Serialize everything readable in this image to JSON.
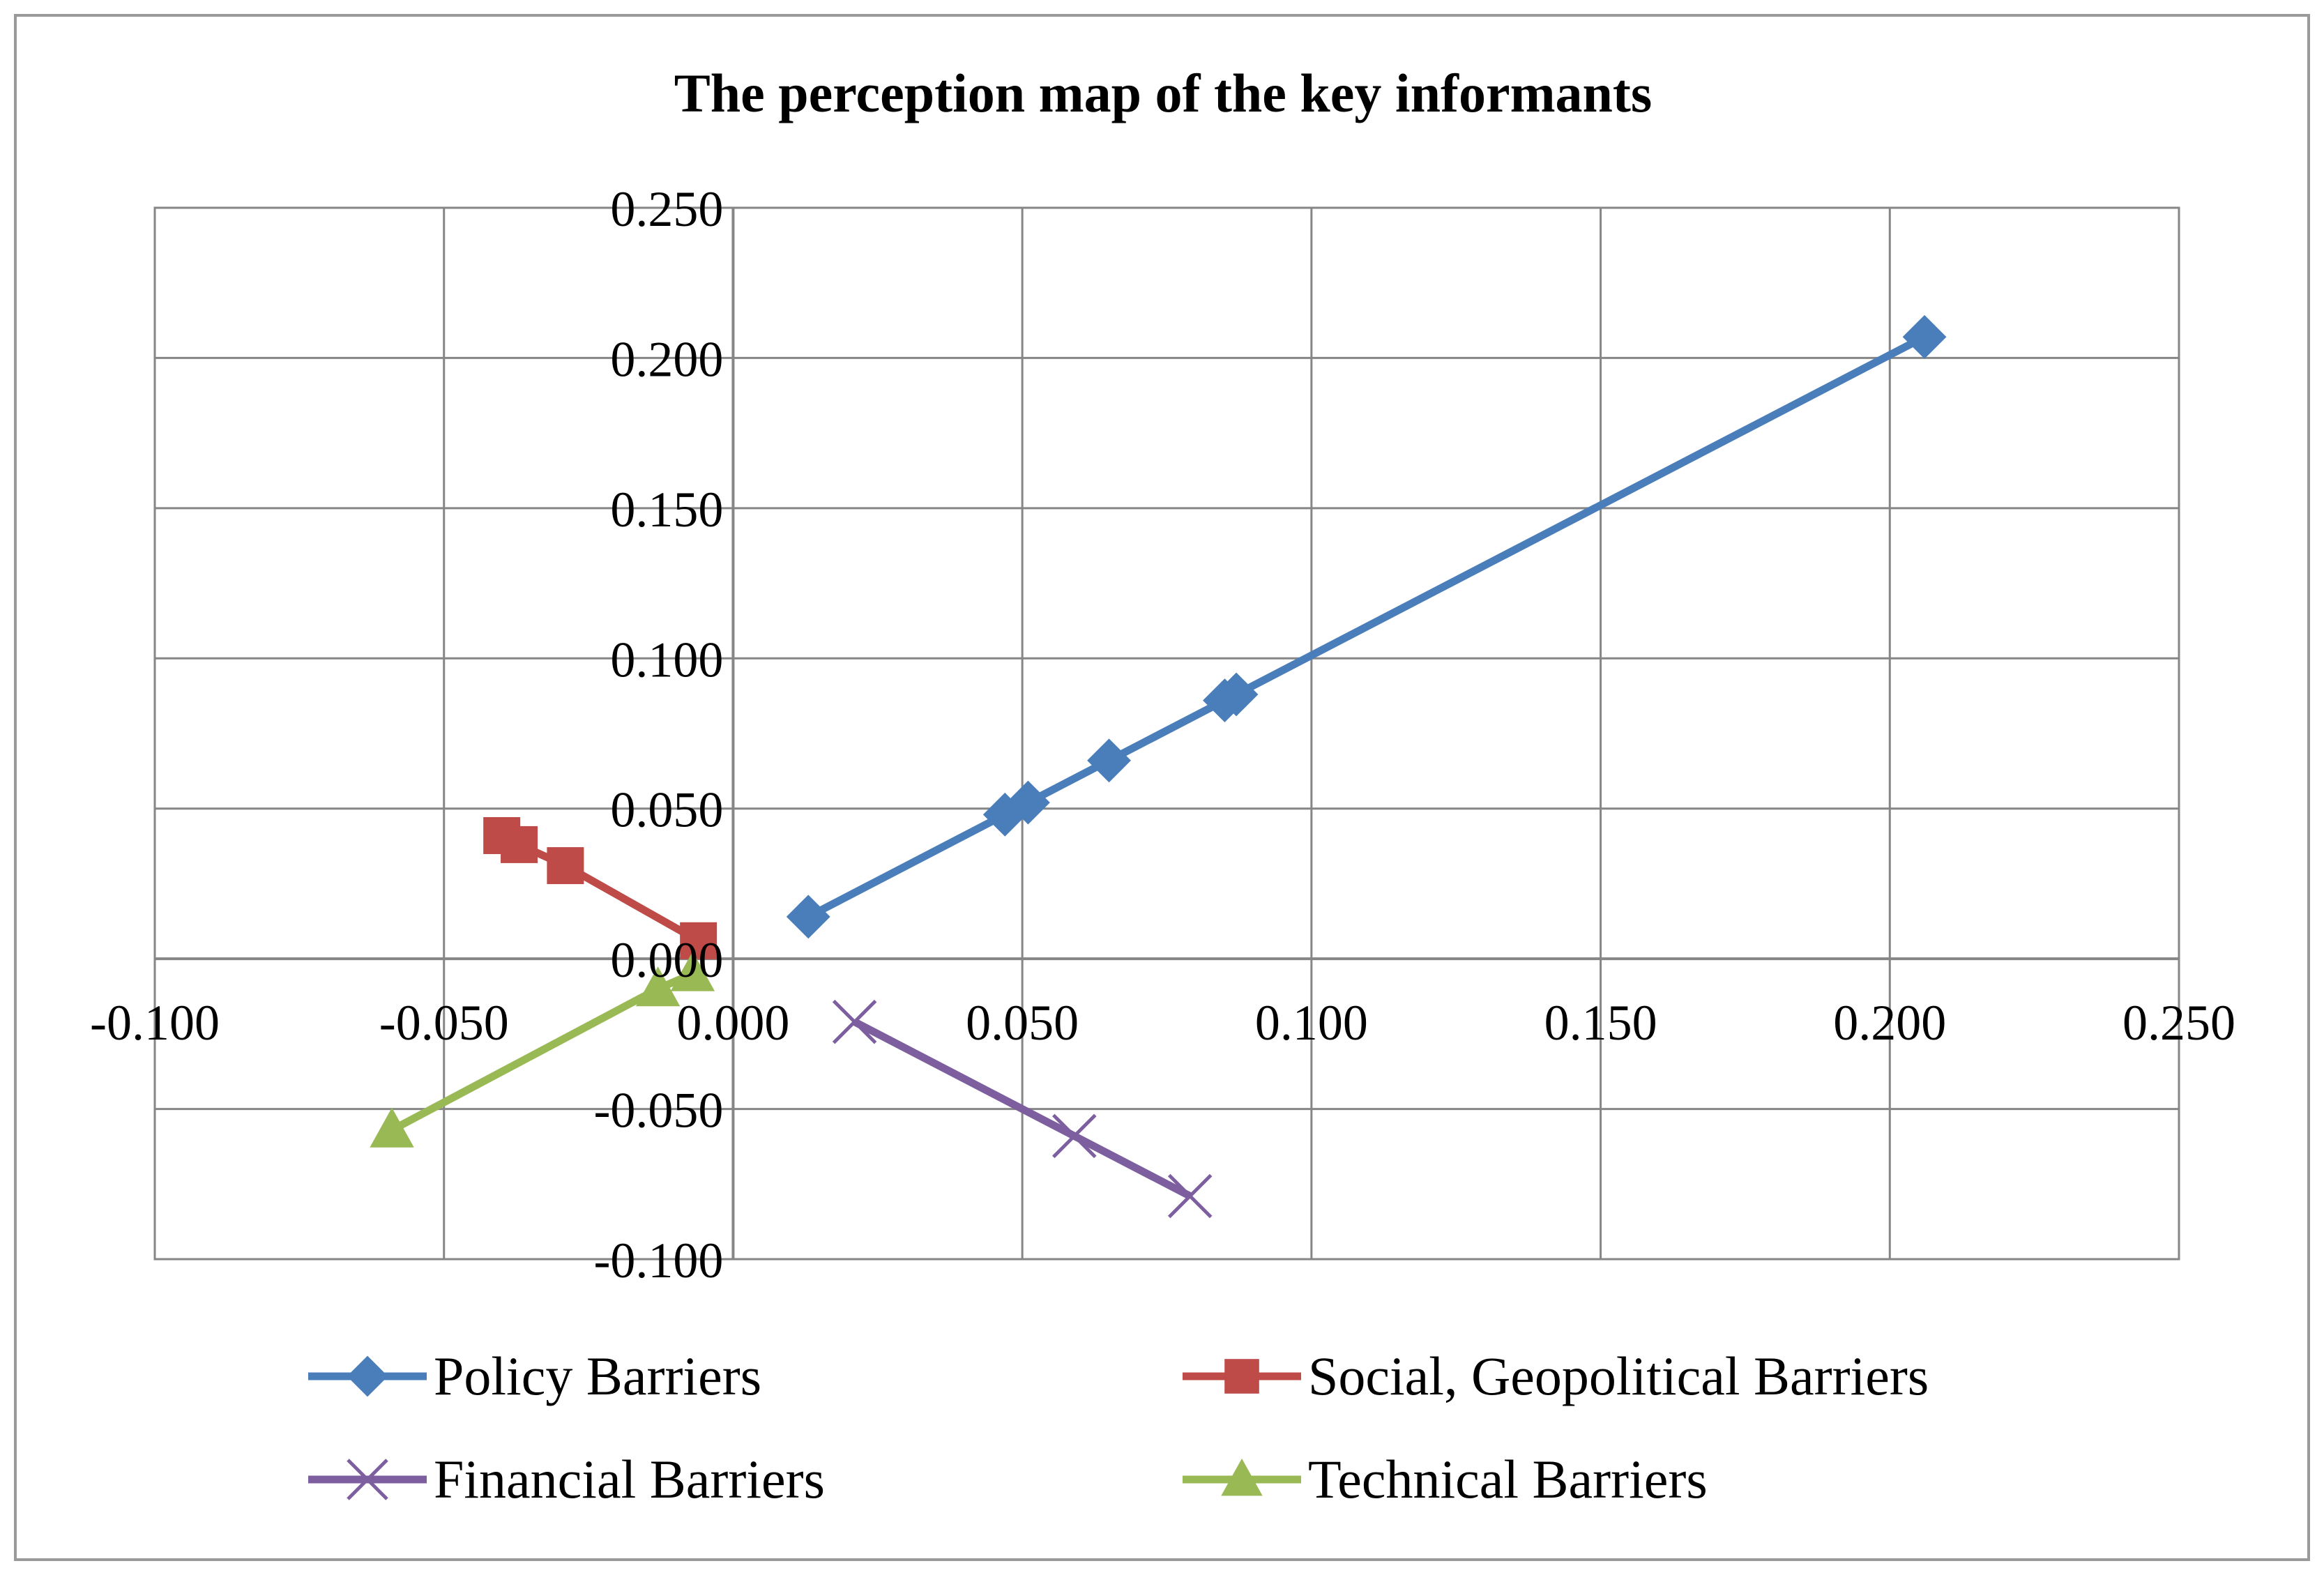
{
  "chart_data": {
    "type": "scatter",
    "title": "The perception map of the key informants",
    "xlabel": "",
    "ylabel": "",
    "xlim": [
      -0.1,
      0.25
    ],
    "ylim": [
      -0.1,
      0.25
    ],
    "grid": true,
    "legend_position": "bottom",
    "x_ticks": [
      -0.1,
      -0.05,
      0.0,
      0.05,
      0.1,
      0.15,
      0.2,
      0.25
    ],
    "y_ticks": [
      -0.1,
      -0.05,
      0.0,
      0.05,
      0.1,
      0.15,
      0.2,
      0.25
    ],
    "x_tick_labels": [
      "-0.100",
      "-0.050",
      "0.000",
      "0.050",
      "0.100",
      "0.150",
      "0.200",
      "0.250"
    ],
    "y_tick_labels": [
      "-0.100",
      "-0.050",
      "0.000",
      "0.050",
      "0.100",
      "0.150",
      "0.200",
      "0.250"
    ],
    "series": [
      {
        "name": "Policy Barriers",
        "color": "#4a7ebb",
        "marker": "diamond",
        "x": [
          0.013,
          0.047,
          0.051,
          0.065,
          0.085,
          0.087,
          0.206
        ],
        "y": [
          0.014,
          0.048,
          0.052,
          0.066,
          0.086,
          0.088,
          0.207
        ]
      },
      {
        "name": "Social, Geopolitical Barriers",
        "color": "#be4b48",
        "marker": "square",
        "x": [
          -0.04,
          -0.037,
          -0.029,
          -0.006
        ],
        "y": [
          0.041,
          0.038,
          0.031,
          0.006
        ]
      },
      {
        "name": "Financial Barriers",
        "color": "#7d5fa0",
        "marker": "x",
        "x": [
          0.021,
          0.059,
          0.079
        ],
        "y": [
          -0.021,
          -0.059,
          -0.079
        ]
      },
      {
        "name": "Technical Barriers",
        "color": "#98b954",
        "marker": "triangle",
        "x": [
          -0.059,
          -0.013,
          -0.007
        ],
        "y": [
          -0.057,
          -0.01,
          -0.005
        ]
      }
    ]
  }
}
